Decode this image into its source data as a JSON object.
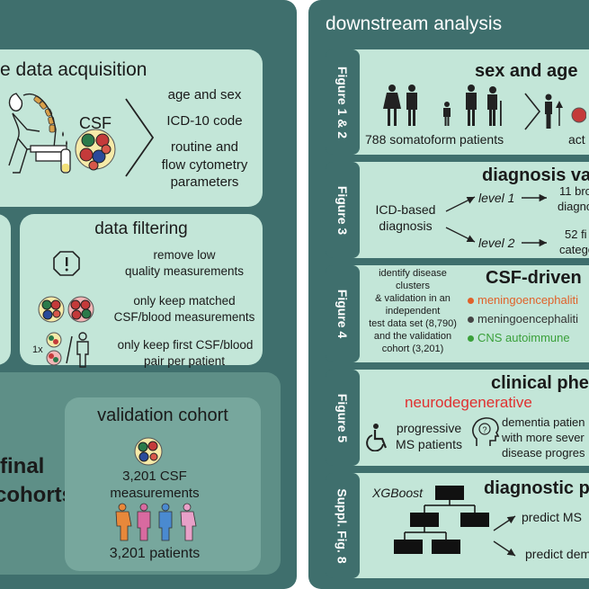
{
  "left": {
    "acquisition": {
      "title": "e data acquisition",
      "csf_label": "CSF",
      "items": [
        "age and sex",
        "ICD-10 code",
        "routine and",
        "flow cytometry",
        "parameters"
      ]
    },
    "filtering": {
      "title": "data filtering",
      "item1": [
        "remove low",
        "quality measurements"
      ],
      "item2": [
        "only keep matched",
        "CSF/blood measurements"
      ],
      "item3": [
        "only keep first CSF/blood",
        "pair per patient"
      ],
      "multiplier": "1x"
    },
    "validation": {
      "title": "validation cohort",
      "measurements": [
        "3,201 CSF",
        "measurements"
      ],
      "patients": "3,201 patients"
    },
    "final": {
      "lines": [
        "final",
        "cohorts"
      ]
    }
  },
  "right": {
    "title": "downstream analysis",
    "fig12": {
      "tab": "Figure 1 & 2",
      "heading": "sex and age",
      "patients": "788 somatoform patients",
      "trail": "act"
    },
    "fig3": {
      "tab": "Figure 3",
      "heading": "diagnosis va",
      "source": [
        "ICD-based",
        "diagnosis"
      ],
      "level1": "level 1",
      "level2": "level 2",
      "out1": [
        "11 bro",
        "diagno"
      ],
      "out2": [
        "52 fi",
        "catego"
      ]
    },
    "fig4": {
      "tab": "Figure 4",
      "heading": "CSF-driven",
      "desc": [
        "identify disease",
        "clusters",
        "& validation in an",
        "independent",
        "test data set (8,790)",
        "and the validation",
        "cohort (3,201)"
      ],
      "clusters": [
        {
          "label": "meningoencephaliti",
          "color": "#e0622a"
        },
        {
          "label": "meningoencephaliti",
          "color": "#444444"
        },
        {
          "label": "CNS autoimmune",
          "color": "#3aa03a"
        }
      ]
    },
    "fig5": {
      "tab": "Figure 5",
      "heading": "clinical phe",
      "sub": "neurodegenerative",
      "sub_color": "#e03030",
      "left": [
        "progressive",
        "MS patients"
      ],
      "right": [
        "dementia patien",
        "with more sever",
        "disease progres"
      ]
    },
    "fig8": {
      "tab": "Suppl. Fig. 8",
      "heading": "diagnostic p",
      "model": "XGBoost",
      "pred1": "predict MS",
      "pred2": "predict dem"
    }
  }
}
